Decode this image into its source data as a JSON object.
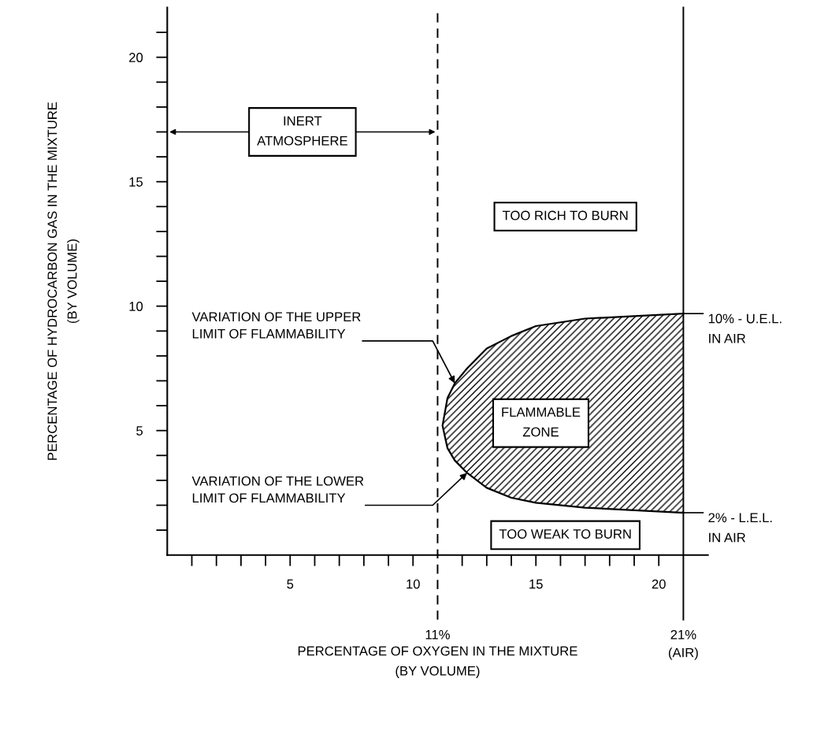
{
  "chart_data": {
    "type": "line",
    "xlabel": "PERCENTAGE OF OXYGEN IN THE MIXTURE\n(BY VOLUME)",
    "ylabel": "PERCENTAGE OF HYDROCARBON GAS IN THE MIXTURE\n(BY VOLUME)",
    "xlim": [
      0,
      22
    ],
    "ylim": [
      0,
      22
    ],
    "xticks": [
      {
        "value": 1,
        "label": null
      },
      {
        "value": 2,
        "label": null
      },
      {
        "value": 3,
        "label": null
      },
      {
        "value": 4,
        "label": null
      },
      5,
      {
        "value": 6,
        "label": null
      },
      {
        "value": 7,
        "label": null
      },
      {
        "value": 8,
        "label": null
      },
      {
        "value": 9,
        "label": null
      },
      10,
      {
        "value": 12,
        "label": null
      },
      {
        "value": 13,
        "label": null
      },
      {
        "value": 14,
        "label": null
      },
      15,
      {
        "value": 16,
        "label": null
      },
      {
        "value": 17,
        "label": null
      },
      {
        "value": 18,
        "label": null
      },
      {
        "value": 19,
        "label": null
      },
      20
    ],
    "yticks": [
      {
        "value": 1,
        "label": null
      },
      {
        "value": 2,
        "label": null
      },
      {
        "value": 3,
        "label": null
      },
      {
        "value": 4,
        "label": null
      },
      5,
      {
        "value": 6,
        "label": null
      },
      {
        "value": 7,
        "label": null
      },
      {
        "value": 8,
        "label": null
      },
      {
        "value": 9,
        "label": null
      },
      10,
      {
        "value": 11,
        "label": null
      },
      {
        "value": 12,
        "label": null
      },
      {
        "value": 13,
        "label": null
      },
      {
        "value": 14,
        "label": null
      },
      15,
      {
        "value": 16,
        "label": null
      },
      {
        "value": 17,
        "label": null
      },
      {
        "value": 18,
        "label": null
      },
      {
        "value": 19,
        "label": null
      },
      20,
      {
        "value": 21,
        "label": null
      }
    ],
    "grid": false,
    "series": [
      {
        "color": "#000000",
        "x": [
          21,
          19,
          17,
          15,
          14,
          13,
          12.2,
          11.7,
          11.4,
          11.2,
          11.4,
          11.7,
          12.2,
          13,
          14,
          15,
          17,
          19,
          21
        ],
        "values": [
          9.7,
          9.6,
          9.5,
          9.2,
          8.8,
          8.3,
          7.5,
          6.9,
          6.3,
          5.2,
          4.3,
          3.8,
          3.3,
          2.7,
          2.3,
          2.1,
          1.9,
          1.8,
          1.7
        ]
      }
    ],
    "ref_lines": [
      {
        "axis": "x",
        "value": 11,
        "label": "11%",
        "line_style": "dashed",
        "color": "#000000"
      },
      {
        "axis": "x",
        "value": 21,
        "label": "21%\n(AIR)",
        "line_style": "solid",
        "color": "#000000"
      }
    ],
    "annotations": [
      "INERT\nATMOSPHERE",
      "TOO RICH TO BURN",
      {
        "text": "VARIATION OF THE UPPER\nLIMIT OF FLAMMABILITY",
        "x": 11.7,
        "y": 6.9
      },
      "FLAMMABLE\nZONE",
      {
        "text": "VARIATION OF THE LOWER\nLIMIT OF FLAMMABILITY",
        "x": 12.2,
        "y": 3.3
      },
      "TOO WEAK TO BURN",
      {
        "text": "10% - U.E.L.\nIN AIR",
        "x": 21,
        "y": 9.7
      },
      {
        "text": "2% - L.E.L.\nIN AIR",
        "x": 21,
        "y": 1.7
      }
    ]
  }
}
